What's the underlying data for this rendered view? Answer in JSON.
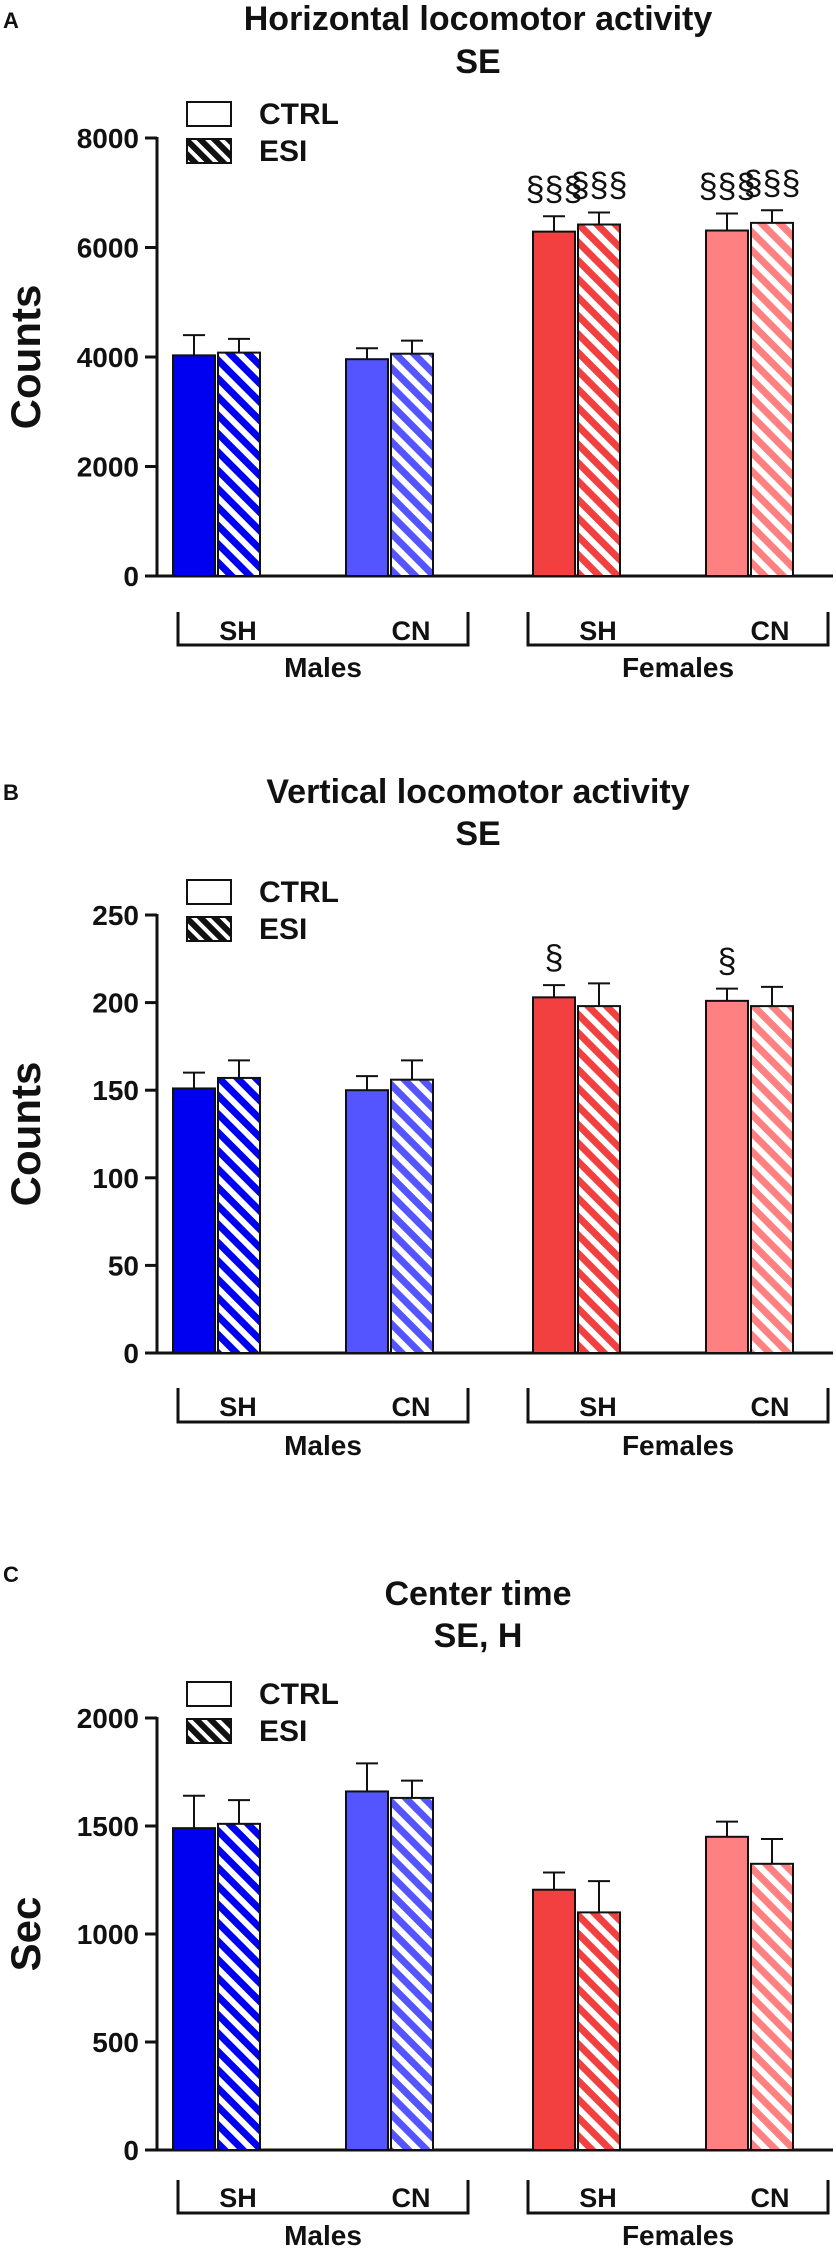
{
  "legend": {
    "ctrl": "CTRL",
    "esi": "ESI"
  },
  "group_labels": {
    "males": "Males",
    "females": "Females"
  },
  "housing_labels": [
    "SH",
    "CN",
    "SH",
    "CN"
  ],
  "colors": {
    "males_sh": "#0000F0",
    "males_cn": "#5555FF",
    "females_sh": "#F24040",
    "females_cn": "#FF8080",
    "axis": "#111111"
  },
  "chart_data": [
    {
      "type": "bar",
      "panel_letter": "A",
      "title": "Horizontal locomotor activity",
      "subtitle": "SE",
      "ylabel": "Counts",
      "ylim": [
        0,
        8000
      ],
      "yticks": [
        0,
        2000,
        4000,
        6000,
        8000
      ],
      "categories": [
        "Males SH",
        "Males CN",
        "Females SH",
        "Females CN"
      ],
      "series": [
        {
          "name": "CTRL",
          "values": [
            4030,
            3960,
            6290,
            6310
          ],
          "errors": [
            370,
            200,
            280,
            310
          ],
          "annotations": [
            "",
            "",
            "§§§",
            "§§§"
          ]
        },
        {
          "name": "ESI",
          "values": [
            4080,
            4060,
            6420,
            6450
          ],
          "errors": [
            250,
            240,
            220,
            230
          ],
          "annotations": [
            "",
            "",
            "§§§",
            "§§§"
          ]
        }
      ]
    },
    {
      "type": "bar",
      "panel_letter": "B",
      "title": "Vertical locomotor activity",
      "subtitle": "SE",
      "ylabel": "Counts",
      "ylim": [
        0,
        250
      ],
      "yticks": [
        0,
        50,
        100,
        150,
        200,
        250
      ],
      "categories": [
        "Males SH",
        "Males CN",
        "Females SH",
        "Females CN"
      ],
      "series": [
        {
          "name": "CTRL",
          "values": [
            151,
            150,
            203,
            201
          ],
          "errors": [
            9,
            8,
            7,
            7
          ],
          "annotations": [
            "",
            "",
            "§",
            "§"
          ]
        },
        {
          "name": "ESI",
          "values": [
            157,
            156,
            198,
            198
          ],
          "errors": [
            10,
            11,
            13,
            11
          ],
          "annotations": [
            "",
            "",
            "",
            ""
          ]
        }
      ]
    },
    {
      "type": "bar",
      "panel_letter": "C",
      "title": "Center time",
      "subtitle": "SE, H",
      "ylabel": "Sec",
      "ylim": [
        0,
        2000
      ],
      "yticks": [
        0,
        500,
        1000,
        1500,
        2000
      ],
      "categories": [
        "Males SH",
        "Males CN",
        "Females SH",
        "Females CN"
      ],
      "series": [
        {
          "name": "CTRL",
          "values": [
            1490,
            1660,
            1205,
            1450
          ],
          "errors": [
            150,
            130,
            80,
            70
          ],
          "annotations": [
            "",
            "",
            "",
            ""
          ]
        },
        {
          "name": "ESI",
          "values": [
            1510,
            1630,
            1100,
            1325
          ],
          "errors": [
            110,
            80,
            145,
            115
          ],
          "annotations": [
            "",
            "",
            "",
            ""
          ]
        }
      ]
    }
  ]
}
